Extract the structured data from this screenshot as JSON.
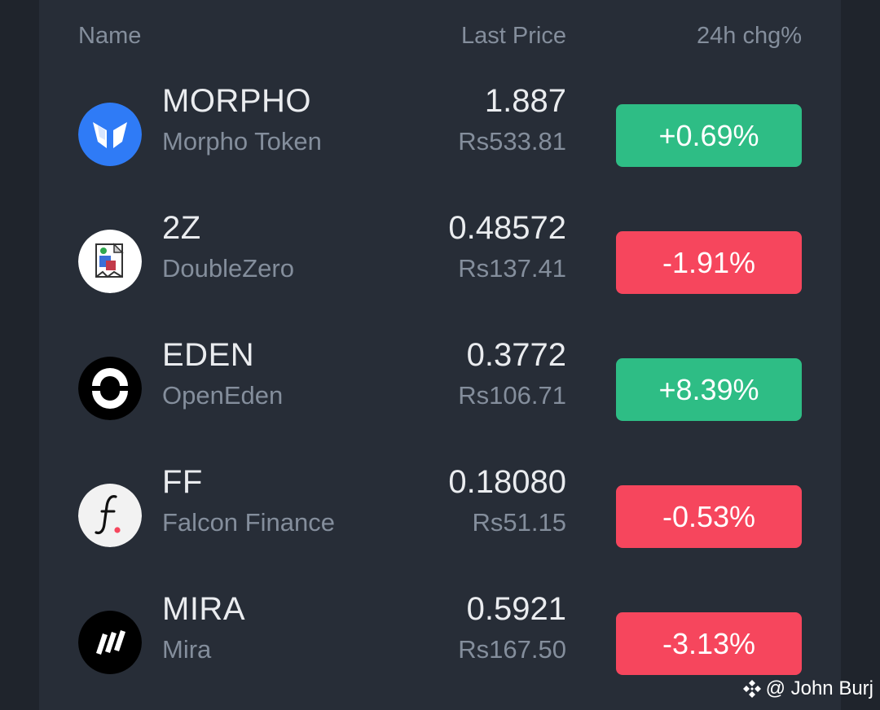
{
  "header": {
    "name": "Name",
    "last_price": "Last Price",
    "change": "24h chg%"
  },
  "rows": [
    {
      "symbol": "MORPHO",
      "name": "Morpho Token",
      "price": "1.887",
      "fiat": "Rs533.81",
      "change": "+0.69%",
      "direction": "up",
      "icon": "morpho-logo-icon",
      "icon_bg": "#2f7bf6"
    },
    {
      "symbol": "2Z",
      "name": "DoubleZero",
      "price": "0.48572",
      "fiat": "Rs137.41",
      "change": "-1.91%",
      "direction": "down",
      "icon": "broken-image-icon",
      "icon_bg": "#ffffff"
    },
    {
      "symbol": "EDEN",
      "name": "OpenEden",
      "price": "0.3772",
      "fiat": "Rs106.71",
      "change": "+8.39%",
      "direction": "up",
      "icon": "openeden-logo-icon",
      "icon_bg": "#000000"
    },
    {
      "symbol": "FF",
      "name": "Falcon Finance",
      "price": "0.18080",
      "fiat": "Rs51.15",
      "change": "-0.53%",
      "direction": "down",
      "icon": "falcon-finance-logo-icon",
      "icon_bg": "#f2f2f2"
    },
    {
      "symbol": "MIRA",
      "name": "Mira",
      "price": "0.5921",
      "fiat": "Rs167.50",
      "change": "-3.13%",
      "direction": "down",
      "icon": "mira-logo-icon",
      "icon_bg": "#000000"
    }
  ],
  "watermark": {
    "text": "@ John Burj",
    "icon": "binance-square-icon"
  },
  "colors": {
    "up": "#2ebd85",
    "down": "#f6465d",
    "background": "#272d37"
  }
}
